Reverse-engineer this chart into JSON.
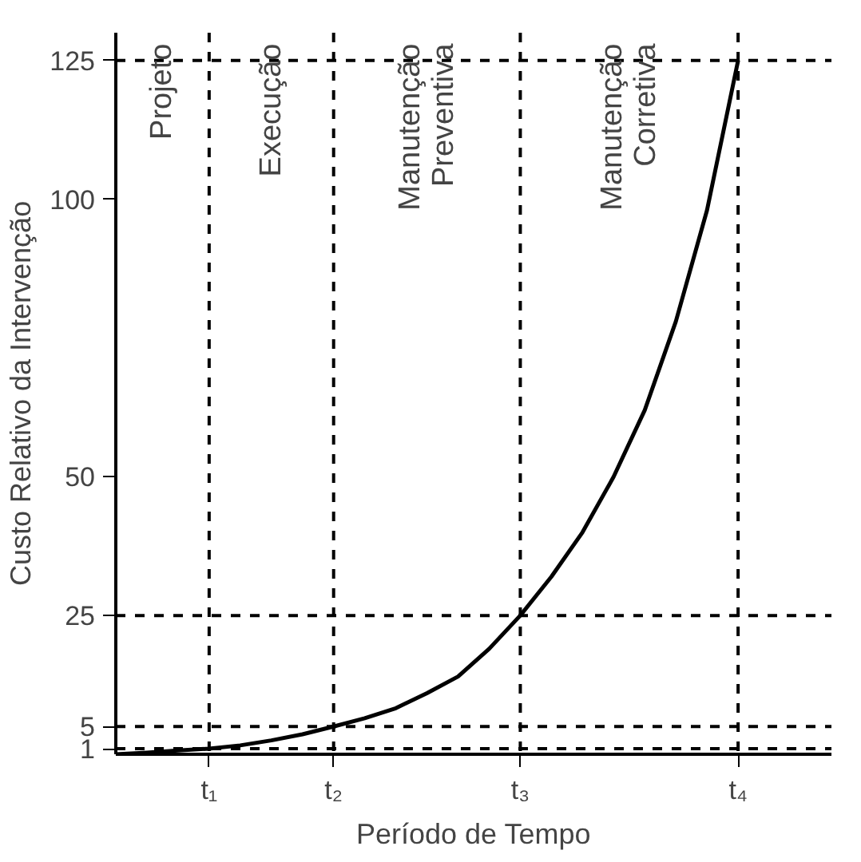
{
  "chart_data": {
    "type": "line",
    "xlabel": "Período de Tempo",
    "ylabel": "Custo Relativo da Intervenção",
    "categories": [
      null,
      null,
      null,
      "t₁",
      null,
      null,
      null,
      "t₂",
      null,
      null,
      null,
      null,
      null,
      "t₃",
      null,
      null,
      null,
      null,
      null,
      null,
      "t₄",
      null,
      null,
      null
    ],
    "series": [
      {
        "color": "#000000",
        "values": [
          0,
          0.3,
          0.7,
          1,
          1.6,
          2.5,
          3.6,
          5,
          6.5,
          8.3,
          11,
          14,
          19,
          25,
          32,
          40,
          50,
          62,
          78,
          98,
          125,
          null,
          null,
          null
        ]
      }
    ],
    "ylim": [
      0,
      130
    ],
    "yticks": [
      1,
      5,
      25,
      50,
      100,
      125
    ],
    "ref_lines": [
      {
        "axis": "x",
        "value": "t₁",
        "line_style": "dashed"
      },
      {
        "axis": "x",
        "value": "t₂",
        "line_style": "dashed"
      },
      {
        "axis": "x",
        "value": "t₃",
        "line_style": "dashed"
      },
      {
        "axis": "x",
        "value": "t₄",
        "line_style": "dashed"
      },
      {
        "axis": "y",
        "value": 1,
        "line_style": "dashed"
      },
      {
        "axis": "y",
        "value": 5,
        "line_style": "dashed"
      },
      {
        "axis": "y",
        "value": 25,
        "line_style": "dashed"
      },
      {
        "axis": "y",
        "value": 125,
        "line_style": "dashed"
      }
    ],
    "annotations": [
      "Projeto",
      "Execução",
      "Manutenção\nPreventiva",
      "Manutenção\nCorretiva"
    ],
    "grid": false,
    "marker": "none",
    "line_style": "solid"
  }
}
